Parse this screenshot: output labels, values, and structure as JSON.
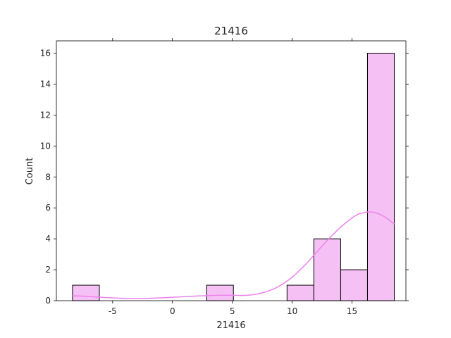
{
  "chart_data": {
    "type": "bar",
    "subtype": "histogram-with-kde",
    "title": "21416",
    "xlabel": "21416",
    "ylabel": "Count",
    "xlim": [
      -9.7,
      19.5
    ],
    "ylim": [
      0,
      16.8
    ],
    "xticks": [
      -5,
      0,
      5,
      10,
      15
    ],
    "yticks": [
      0,
      2,
      4,
      6,
      8,
      10,
      12,
      14,
      16
    ],
    "grid": false,
    "legend": "none",
    "bar_color": "#f5c1f5",
    "edge_color": "#000000",
    "kde_color": "#ee82ee",
    "bins": [
      {
        "x0": -8.35,
        "x1": -6.11,
        "count": 1
      },
      {
        "x0": -6.11,
        "x1": -3.87,
        "count": 0
      },
      {
        "x0": -3.87,
        "x1": -1.63,
        "count": 0
      },
      {
        "x0": -1.63,
        "x1": 0.61,
        "count": 0
      },
      {
        "x0": 0.61,
        "x1": 2.85,
        "count": 0
      },
      {
        "x0": 2.85,
        "x1": 5.09,
        "count": 1
      },
      {
        "x0": 5.09,
        "x1": 7.33,
        "count": 0
      },
      {
        "x0": 7.33,
        "x1": 9.57,
        "count": 0
      },
      {
        "x0": 9.57,
        "x1": 11.81,
        "count": 1
      },
      {
        "x0": 11.81,
        "x1": 14.05,
        "count": 4
      },
      {
        "x0": 14.05,
        "x1": 16.29,
        "count": 2
      },
      {
        "x0": 16.29,
        "x1": 18.53,
        "count": 16
      }
    ],
    "kde": {
      "x": [
        -8.35,
        -7,
        -5.5,
        -4,
        -3,
        -2,
        -1,
        0,
        1,
        2,
        3,
        4,
        5,
        6,
        7,
        8,
        9,
        10,
        11,
        12,
        13,
        14,
        15,
        15.5,
        16,
        16.5,
        17,
        17.5,
        18,
        18.53
      ],
      "y": [
        0.32,
        0.27,
        0.2,
        0.15,
        0.14,
        0.15,
        0.18,
        0.22,
        0.26,
        0.3,
        0.33,
        0.35,
        0.35,
        0.34,
        0.42,
        0.62,
        0.98,
        1.52,
        2.25,
        3.1,
        3.95,
        4.72,
        5.35,
        5.58,
        5.7,
        5.74,
        5.68,
        5.52,
        5.28,
        4.95
      ]
    }
  }
}
